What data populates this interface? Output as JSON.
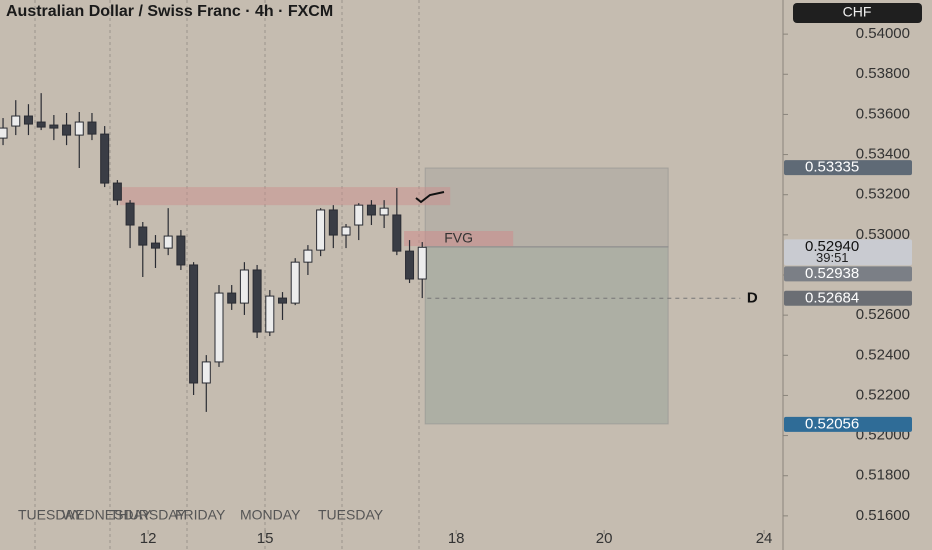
{
  "chart_data": {
    "type": "candlestick",
    "title": "Australian Dollar / Swiss Franc · 4h · FXCM",
    "currency": "CHF",
    "candles": [
      [
        0.53482,
        0.53582,
        0.53447,
        0.53532
      ],
      [
        0.53542,
        0.53671,
        0.53497,
        0.53592
      ],
      [
        0.53592,
        0.53651,
        0.53497,
        0.53552
      ],
      [
        0.53562,
        0.53706,
        0.53522,
        0.53537
      ],
      [
        0.53547,
        0.53597,
        0.53472,
        0.53532
      ],
      [
        0.53547,
        0.53607,
        0.53447,
        0.53497
      ],
      [
        0.53497,
        0.53612,
        0.53333,
        0.53562
      ],
      [
        0.53562,
        0.53607,
        0.53472,
        0.53502
      ],
      [
        0.53502,
        0.53542,
        0.53238,
        0.53258
      ],
      [
        0.53258,
        0.53273,
        0.53148,
        0.53173
      ],
      [
        0.53158,
        0.53173,
        0.52934,
        0.53049
      ],
      [
        0.53039,
        0.53064,
        0.5279,
        0.52949
      ],
      [
        0.52959,
        0.52999,
        0.52835,
        0.52934
      ],
      [
        0.52934,
        0.53133,
        0.52899,
        0.52994
      ],
      [
        0.52994,
        0.53024,
        0.52825,
        0.5285
      ],
      [
        0.5285,
        0.52864,
        0.52202,
        0.52262
      ],
      [
        0.52262,
        0.52401,
        0.52118,
        0.52367
      ],
      [
        0.52367,
        0.5275,
        0.52342,
        0.5271
      ],
      [
        0.5271,
        0.5275,
        0.52626,
        0.5266
      ],
      [
        0.5266,
        0.52864,
        0.52601,
        0.52825
      ],
      [
        0.52825,
        0.5285,
        0.52486,
        0.52516
      ],
      [
        0.52516,
        0.52725,
        0.52496,
        0.52695
      ],
      [
        0.52685,
        0.52715,
        0.52576,
        0.5266
      ],
      [
        0.5266,
        0.52884,
        0.5265,
        0.52864
      ],
      [
        0.52864,
        0.52949,
        0.528,
        0.52924
      ],
      [
        0.52924,
        0.53133,
        0.52894,
        0.53124
      ],
      [
        0.53124,
        0.53148,
        0.52934,
        0.52999
      ],
      [
        0.52999,
        0.53054,
        0.52934,
        0.53039
      ],
      [
        0.53049,
        0.53158,
        0.52974,
        0.53148
      ],
      [
        0.53148,
        0.53173,
        0.53049,
        0.53099
      ],
      [
        0.53099,
        0.53173,
        0.53034,
        0.53133
      ],
      [
        0.53099,
        0.53233,
        0.52899,
        0.52919
      ],
      [
        0.52919,
        0.52974,
        0.5276,
        0.5278
      ],
      [
        0.5278,
        0.52964,
        0.52685,
        0.52938
      ]
    ],
    "ylim": [
      0.5143,
      0.5417
    ],
    "yticks": [
      {
        "value": 0.516,
        "label": "0.51600"
      },
      {
        "value": 0.518,
        "label": "0.51800"
      },
      {
        "value": 0.52,
        "label": "0.52000"
      },
      {
        "value": 0.522,
        "label": "0.52200"
      },
      {
        "value": 0.524,
        "label": "0.52400"
      },
      {
        "value": 0.526,
        "label": "0.52600"
      },
      {
        "value": 0.528,
        "label": "0.52800"
      },
      {
        "value": 0.53,
        "label": "0.53000"
      },
      {
        "value": 0.532,
        "label": "0.53200"
      },
      {
        "value": 0.534,
        "label": "0.53400"
      },
      {
        "value": 0.536,
        "label": "0.53600"
      },
      {
        "value": 0.538,
        "label": "0.53800"
      },
      {
        "value": 0.54,
        "label": "0.54000"
      }
    ],
    "xlim": [
      -0.24,
      61.4
    ],
    "xticks": [
      {
        "value": 11.42,
        "label": "12"
      },
      {
        "value": 20.63,
        "label": "15"
      },
      {
        "value": 35.67,
        "label": "18"
      },
      {
        "value": 47.32,
        "label": "20"
      },
      {
        "value": 59.91,
        "label": "24"
      }
    ],
    "session_labels": [
      "TUESDAY",
      "WEDNESDAY",
      "THURSDAY",
      "FRIDAY",
      "MONDAY",
      "TUESDAY"
    ],
    "zone": {
      "x": [
        9.21,
        35.2
      ],
      "y": [
        0.53148,
        0.53238
      ],
      "color": "rgba(205,140,140,0.45)"
    },
    "fvg": {
      "label": "FVG",
      "x": [
        31.57,
        40.16
      ],
      "y": [
        0.52944,
        0.53019
      ],
      "color": "rgba(205,140,140,0.55)"
    },
    "box": {
      "x": [
        33.23,
        52.36
      ],
      "y": [
        0.52058,
        0.53333
      ],
      "split": 0.5294
    },
    "level": {
      "label": "D",
      "value": 0.52684,
      "x": [
        33.4,
        60.4
      ]
    },
    "price_tags": [
      {
        "value": 0.53335,
        "label": "0.53335",
        "color": "#5f6a76"
      },
      {
        "value": 0.5294,
        "label": "0.52940",
        "color": "#c9cbd1"
      },
      {
        "value": 0.52938,
        "label": "0.52938",
        "color": "#7b7f86"
      },
      {
        "value": 0.52684,
        "label": "0.52684",
        "color": "#6b6e74"
      },
      {
        "value": 0.52056,
        "label": "0.52056",
        "color": "#2f6c97"
      }
    ],
    "countdown": "39:51"
  }
}
